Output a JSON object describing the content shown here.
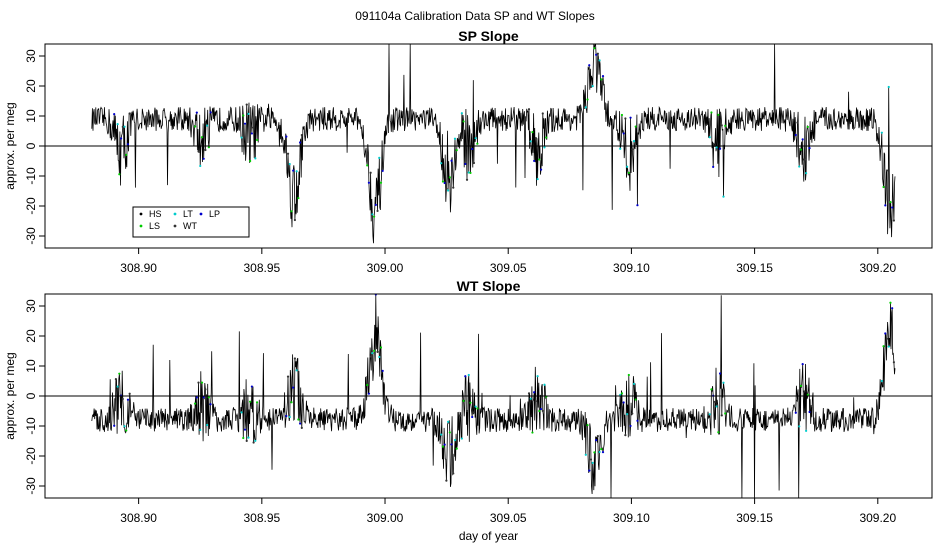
{
  "page_title": "091104a   Calibration Data SP and WT Slopes",
  "chart_data": [
    {
      "type": "line",
      "title": "SP Slope",
      "xlabel": "",
      "ylabel": "approx. per meg",
      "xlim": [
        308.862,
        309.222
      ],
      "ylim": [
        -34,
        34
      ],
      "xticks": [
        308.9,
        308.95,
        309.0,
        309.05,
        309.1,
        309.15,
        309.2
      ],
      "xtick_labels": [
        "308.90",
        "308.95",
        "309.00",
        "309.05",
        "309.10",
        "309.15",
        "309.20"
      ],
      "yticks": [
        -30,
        -20,
        -10,
        0,
        10,
        20,
        30
      ],
      "ytick_labels": [
        "-30",
        "-20",
        "-10",
        "0",
        "10",
        "20",
        "30"
      ],
      "hline": 0,
      "x_range": [
        308.881,
        309.207
      ],
      "baseline_level": 9,
      "noise_amplitude": 4,
      "calibration_events": [
        {
          "x": 308.893,
          "depth": -10
        },
        {
          "x": 308.926,
          "depth": -8
        },
        {
          "x": 308.945,
          "depth": -6
        },
        {
          "x": 308.963,
          "depth": -25
        },
        {
          "x": 308.996,
          "depth": -30
        },
        {
          "x": 309.026,
          "depth": -20
        },
        {
          "x": 309.034,
          "depth": -8
        },
        {
          "x": 309.062,
          "depth": -10
        },
        {
          "x": 309.085,
          "depth": 20
        },
        {
          "x": 309.099,
          "depth": -12
        },
        {
          "x": 309.135,
          "depth": -8
        },
        {
          "x": 309.17,
          "depth": -10
        },
        {
          "x": 309.205,
          "depth": -30
        }
      ],
      "marker_series_colors": {
        "HS": "#000000",
        "LS": "#00cc00",
        "LT": "#00cccc",
        "WT": "#333333",
        "LP": "#0000cc"
      },
      "legend": {
        "position": "bottom-left",
        "entries": [
          {
            "label": "HS",
            "color": "#000000"
          },
          {
            "label": "LT",
            "color": "#00cccc"
          },
          {
            "label": "LP",
            "color": "#0000cc"
          },
          {
            "label": "LS",
            "color": "#00cc00"
          },
          {
            "label": "WT",
            "color": "#333333"
          }
        ]
      },
      "grid": false
    },
    {
      "type": "line",
      "title": "WT Slope",
      "xlabel": "day of year",
      "ylabel": "approx. per meg",
      "xlim": [
        308.862,
        309.222
      ],
      "ylim": [
        -34,
        34
      ],
      "xticks": [
        308.9,
        308.95,
        309.0,
        309.05,
        309.1,
        309.15,
        309.2
      ],
      "xtick_labels": [
        "308.90",
        "308.95",
        "309.00",
        "309.05",
        "309.10",
        "309.15",
        "309.20"
      ],
      "yticks": [
        -30,
        -20,
        -10,
        0,
        10,
        20,
        30
      ],
      "ytick_labels": [
        "-30",
        "-20",
        "-10",
        "0",
        "10",
        "20",
        "30"
      ],
      "hline": 0,
      "x_range": [
        308.881,
        309.207
      ],
      "baseline_level": -8,
      "noise_amplitude": 4,
      "calibration_events": [
        {
          "x": 308.893,
          "depth": 8
        },
        {
          "x": 308.926,
          "depth": 5
        },
        {
          "x": 308.945,
          "depth": 4
        },
        {
          "x": 308.963,
          "depth": 12
        },
        {
          "x": 308.996,
          "depth": 30
        },
        {
          "x": 309.026,
          "depth": -12
        },
        {
          "x": 309.034,
          "depth": 5
        },
        {
          "x": 309.062,
          "depth": 8
        },
        {
          "x": 309.085,
          "depth": -15
        },
        {
          "x": 309.099,
          "depth": 6
        },
        {
          "x": 309.135,
          "depth": 6
        },
        {
          "x": 309.17,
          "depth": 8
        },
        {
          "x": 309.205,
          "depth": 30
        }
      ],
      "marker_series_colors": {
        "HS": "#000000",
        "LS": "#00cc00",
        "LT": "#00cccc",
        "WT": "#333333",
        "LP": "#0000cc"
      },
      "grid": false
    }
  ]
}
